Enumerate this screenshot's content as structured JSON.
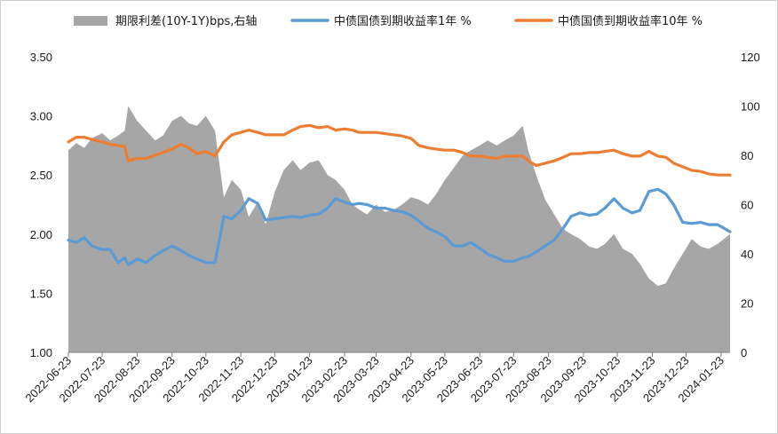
{
  "chart_data": {
    "type": "area+line",
    "title": "",
    "xlabel": "",
    "ylabel_left": "",
    "ylabel_right": "",
    "legend_position": "top",
    "grid": false,
    "left_axis": {
      "range": [
        1.0,
        3.5
      ],
      "ticks": [
        "1.00",
        "1.50",
        "2.00",
        "2.50",
        "3.00",
        "3.50"
      ]
    },
    "right_axis": {
      "range": [
        0,
        120
      ],
      "ticks": [
        "0",
        "20",
        "40",
        "60",
        "80",
        "100",
        "120"
      ]
    },
    "x_range": [
      "2022-06-23",
      "2024-01-31"
    ],
    "x_tick_labels": [
      "2022-06-23",
      "2022-07-23",
      "2022-08-23",
      "2022-09-23",
      "2022-10-23",
      "2022-11-23",
      "2022-12-23",
      "2023-01-23",
      "2023-02-23",
      "2023-03-23",
      "2023-04-23",
      "2023-05-23",
      "2023-06-23",
      "2023-07-23",
      "2023-08-23",
      "2023-09-23",
      "2023-10-23",
      "2023-11-23",
      "2023-12-23",
      "2024-01-23"
    ],
    "series": [
      {
        "name": "期限利差(10Y-1Y)bps,右轴",
        "kind": "area",
        "axis": "right",
        "color": "#a6a6a6",
        "x": [
          "2022-06-23",
          "2022-06-30",
          "2022-07-07",
          "2022-07-14",
          "2022-07-23",
          "2022-07-30",
          "2022-08-06",
          "2022-08-12",
          "2022-08-15",
          "2022-08-23",
          "2022-08-31",
          "2022-09-08",
          "2022-09-15",
          "2022-09-23",
          "2022-10-01",
          "2022-10-08",
          "2022-10-15",
          "2022-10-23",
          "2022-10-31",
          "2022-11-08",
          "2022-11-15",
          "2022-11-23",
          "2022-11-30",
          "2022-12-08",
          "2022-12-15",
          "2022-12-23",
          "2022-12-31",
          "2023-01-08",
          "2023-01-15",
          "2023-01-23",
          "2023-01-31",
          "2023-02-08",
          "2023-02-15",
          "2023-02-23",
          "2023-03-02",
          "2023-03-08",
          "2023-03-15",
          "2023-03-23",
          "2023-03-31",
          "2023-04-08",
          "2023-04-15",
          "2023-04-23",
          "2023-04-30",
          "2023-05-08",
          "2023-05-15",
          "2023-05-23",
          "2023-05-31",
          "2023-06-08",
          "2023-06-15",
          "2023-06-23",
          "2023-06-30",
          "2023-07-08",
          "2023-07-15",
          "2023-07-23",
          "2023-07-31",
          "2023-08-05",
          "2023-08-12",
          "2023-08-20",
          "2023-08-28",
          "2023-09-05",
          "2023-09-12",
          "2023-09-20",
          "2023-09-28",
          "2023-10-05",
          "2023-10-12",
          "2023-10-20",
          "2023-10-28",
          "2023-11-05",
          "2023-11-12",
          "2023-11-20",
          "2023-11-28",
          "2023-12-05",
          "2023-12-12",
          "2023-12-20",
          "2023-12-28",
          "2024-01-05",
          "2024-01-12",
          "2024-01-20",
          "2024-01-31"
        ],
        "values": [
          82,
          85,
          83,
          87,
          89,
          86,
          88,
          90,
          100,
          94,
          90,
          86,
          88,
          94,
          96,
          93,
          92,
          96,
          90,
          63,
          70,
          66,
          55,
          61,
          52,
          65,
          74,
          78,
          74,
          77,
          78,
          72,
          70,
          66,
          60,
          58,
          56,
          60,
          57,
          58,
          60,
          63,
          62,
          60,
          64,
          70,
          75,
          80,
          82,
          84,
          86,
          84,
          86,
          88,
          92,
          82,
          72,
          62,
          56,
          50,
          48,
          46,
          43,
          42,
          44,
          48,
          42,
          40,
          36,
          30,
          27,
          28,
          34,
          40,
          46,
          43,
          42,
          44,
          48
        ]
      },
      {
        "name": "中债国债到期收益率1年 %",
        "kind": "line",
        "axis": "left",
        "color": "#5b9bd5",
        "x": [
          "2022-06-23",
          "2022-06-30",
          "2022-07-07",
          "2022-07-14",
          "2022-07-23",
          "2022-07-30",
          "2022-08-06",
          "2022-08-12",
          "2022-08-15",
          "2022-08-23",
          "2022-08-31",
          "2022-09-08",
          "2022-09-15",
          "2022-09-23",
          "2022-10-01",
          "2022-10-08",
          "2022-10-15",
          "2022-10-23",
          "2022-10-31",
          "2022-11-08",
          "2022-11-15",
          "2022-11-23",
          "2022-11-30",
          "2022-12-08",
          "2022-12-15",
          "2022-12-23",
          "2022-12-31",
          "2023-01-08",
          "2023-01-15",
          "2023-01-23",
          "2023-01-31",
          "2023-02-08",
          "2023-02-15",
          "2023-02-23",
          "2023-03-02",
          "2023-03-08",
          "2023-03-15",
          "2023-03-23",
          "2023-03-31",
          "2023-04-08",
          "2023-04-15",
          "2023-04-23",
          "2023-04-30",
          "2023-05-08",
          "2023-05-15",
          "2023-05-23",
          "2023-05-31",
          "2023-06-08",
          "2023-06-15",
          "2023-06-23",
          "2023-06-30",
          "2023-07-08",
          "2023-07-15",
          "2023-07-23",
          "2023-07-31",
          "2023-08-05",
          "2023-08-12",
          "2023-08-20",
          "2023-08-28",
          "2023-09-05",
          "2023-09-12",
          "2023-09-20",
          "2023-09-28",
          "2023-10-05",
          "2023-10-12",
          "2023-10-20",
          "2023-10-28",
          "2023-11-05",
          "2023-11-12",
          "2023-11-20",
          "2023-11-28",
          "2023-12-05",
          "2023-12-12",
          "2023-12-20",
          "2023-12-28",
          "2024-01-05",
          "2024-01-12",
          "2024-01-20",
          "2024-01-31"
        ],
        "values": [
          1.95,
          1.93,
          1.97,
          1.9,
          1.87,
          1.87,
          1.76,
          1.8,
          1.74,
          1.79,
          1.76,
          1.82,
          1.86,
          1.9,
          1.86,
          1.82,
          1.79,
          1.76,
          1.76,
          2.15,
          2.13,
          2.2,
          2.3,
          2.26,
          2.12,
          2.13,
          2.14,
          2.15,
          2.14,
          2.16,
          2.17,
          2.22,
          2.3,
          2.27,
          2.25,
          2.26,
          2.25,
          2.22,
          2.22,
          2.2,
          2.19,
          2.16,
          2.11,
          2.05,
          2.02,
          1.98,
          1.9,
          1.9,
          1.93,
          1.88,
          1.83,
          1.8,
          1.77,
          1.77,
          1.8,
          1.81,
          1.85,
          1.9,
          1.95,
          2.05,
          2.15,
          2.18,
          2.16,
          2.17,
          2.22,
          2.3,
          2.22,
          2.18,
          2.2,
          2.36,
          2.38,
          2.34,
          2.25,
          2.1,
          2.09,
          2.1,
          2.08,
          2.08,
          2.02
        ]
      },
      {
        "name": "中债国债到期收益率10年 %",
        "kind": "line",
        "axis": "left",
        "color": "#ed7d31",
        "x": [
          "2022-06-23",
          "2022-06-30",
          "2022-07-07",
          "2022-07-14",
          "2022-07-23",
          "2022-07-30",
          "2022-08-06",
          "2022-08-12",
          "2022-08-15",
          "2022-08-23",
          "2022-08-31",
          "2022-09-08",
          "2022-09-15",
          "2022-09-23",
          "2022-10-01",
          "2022-10-08",
          "2022-10-15",
          "2022-10-23",
          "2022-10-31",
          "2022-11-08",
          "2022-11-15",
          "2022-11-23",
          "2022-11-30",
          "2022-12-08",
          "2022-12-15",
          "2022-12-23",
          "2022-12-31",
          "2023-01-08",
          "2023-01-15",
          "2023-01-23",
          "2023-01-31",
          "2023-02-08",
          "2023-02-15",
          "2023-02-23",
          "2023-03-02",
          "2023-03-08",
          "2023-03-15",
          "2023-03-23",
          "2023-03-31",
          "2023-04-08",
          "2023-04-15",
          "2023-04-23",
          "2023-04-30",
          "2023-05-08",
          "2023-05-15",
          "2023-05-23",
          "2023-05-31",
          "2023-06-08",
          "2023-06-15",
          "2023-06-23",
          "2023-06-30",
          "2023-07-08",
          "2023-07-15",
          "2023-07-23",
          "2023-07-31",
          "2023-08-05",
          "2023-08-12",
          "2023-08-20",
          "2023-08-28",
          "2023-09-05",
          "2023-09-12",
          "2023-09-20",
          "2023-09-28",
          "2023-10-05",
          "2023-10-12",
          "2023-10-20",
          "2023-10-28",
          "2023-11-05",
          "2023-11-12",
          "2023-11-20",
          "2023-11-28",
          "2023-12-05",
          "2023-12-12",
          "2023-12-20",
          "2023-12-28",
          "2024-01-05",
          "2024-01-12",
          "2024-01-20",
          "2024-01-31"
        ],
        "values": [
          2.78,
          2.82,
          2.82,
          2.8,
          2.78,
          2.76,
          2.75,
          2.74,
          2.62,
          2.64,
          2.64,
          2.67,
          2.69,
          2.72,
          2.76,
          2.73,
          2.68,
          2.7,
          2.66,
          2.78,
          2.84,
          2.86,
          2.88,
          2.86,
          2.84,
          2.84,
          2.84,
          2.88,
          2.91,
          2.92,
          2.9,
          2.91,
          2.88,
          2.89,
          2.88,
          2.86,
          2.86,
          2.86,
          2.85,
          2.84,
          2.83,
          2.81,
          2.75,
          2.73,
          2.72,
          2.71,
          2.71,
          2.69,
          2.66,
          2.66,
          2.65,
          2.64,
          2.66,
          2.66,
          2.66,
          2.62,
          2.58,
          2.6,
          2.62,
          2.65,
          2.68,
          2.68,
          2.69,
          2.69,
          2.7,
          2.71,
          2.68,
          2.66,
          2.66,
          2.7,
          2.66,
          2.65,
          2.6,
          2.57,
          2.54,
          2.53,
          2.51,
          2.5,
          2.5
        ]
      }
    ]
  }
}
